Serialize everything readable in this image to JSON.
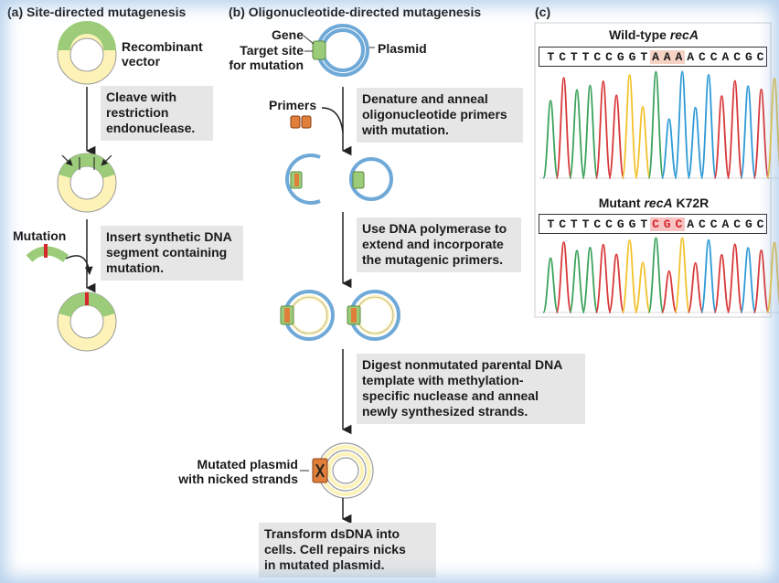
{
  "panel_a": {
    "title": "(a) Site-directed mutagenesis",
    "recombinant_vector": [
      "Recombinant",
      "vector"
    ],
    "step1": [
      "Cleave with",
      "restriction",
      "endonuclease."
    ],
    "mutation_label": "Mutation",
    "step2": [
      "Insert synthetic DNA",
      "segment containing",
      "mutation."
    ]
  },
  "panel_b": {
    "title": "(b) Oligonucleotide-directed mutagenesis",
    "gene_label": "Gene",
    "target_site_label": [
      "Target site",
      "for mutation"
    ],
    "plasmid_label": "Plasmid",
    "primers_label": "Primers",
    "step1": [
      "Denature and anneal",
      "oligonucleotide primers",
      "with mutation."
    ],
    "step2": [
      "Use DNA polymerase to",
      "extend and incorporate",
      "the mutagenic primers."
    ],
    "step3": [
      "Digest nonmutated parental DNA",
      "template with methylation-",
      "specific nuclease and anneal",
      "newly synthesized strands."
    ],
    "mutated_plasmid_label": [
      "Mutated plasmid",
      "with nicked strands"
    ],
    "step4": [
      "Transform dsDNA into",
      "cells. Cell repairs nicks",
      "in mutated plasmid."
    ]
  },
  "panel_c": {
    "title": "(c)",
    "wild_type": {
      "title_prefix": "Wild-type ",
      "title_gene": "recA",
      "sequence": [
        "T",
        "C",
        "T",
        "T",
        "C",
        "C",
        "G",
        "G",
        "T",
        "A",
        "A",
        "A",
        "A",
        "C",
        "C",
        "A",
        "C",
        "G",
        "C"
      ],
      "highlight": [
        9,
        10,
        11
      ]
    },
    "mutant": {
      "title_prefix": "Mutant ",
      "title_gene": "recA",
      "title_suffix": " K72R",
      "sequence": [
        "T",
        "C",
        "T",
        "T",
        "C",
        "C",
        "G",
        "G",
        "T",
        "C",
        "G",
        "C",
        "A",
        "C",
        "C",
        "A",
        "C",
        "G",
        "C"
      ],
      "highlight": [
        9,
        10,
        11
      ]
    },
    "trace_colors": {
      "A": "#2e9ad6",
      "C": "#d8383a",
      "G": "#f2c22a",
      "T": "#3aa35b"
    }
  },
  "colors": {
    "gene_green": "#9ccc7a",
    "vector_yellow": "#fdf3b8",
    "plasmid_blue": "#6fa9d8",
    "mutation_red": "#d4262b",
    "primer_orange": "#e07f3a",
    "box_gray": "#e6e6e6"
  }
}
